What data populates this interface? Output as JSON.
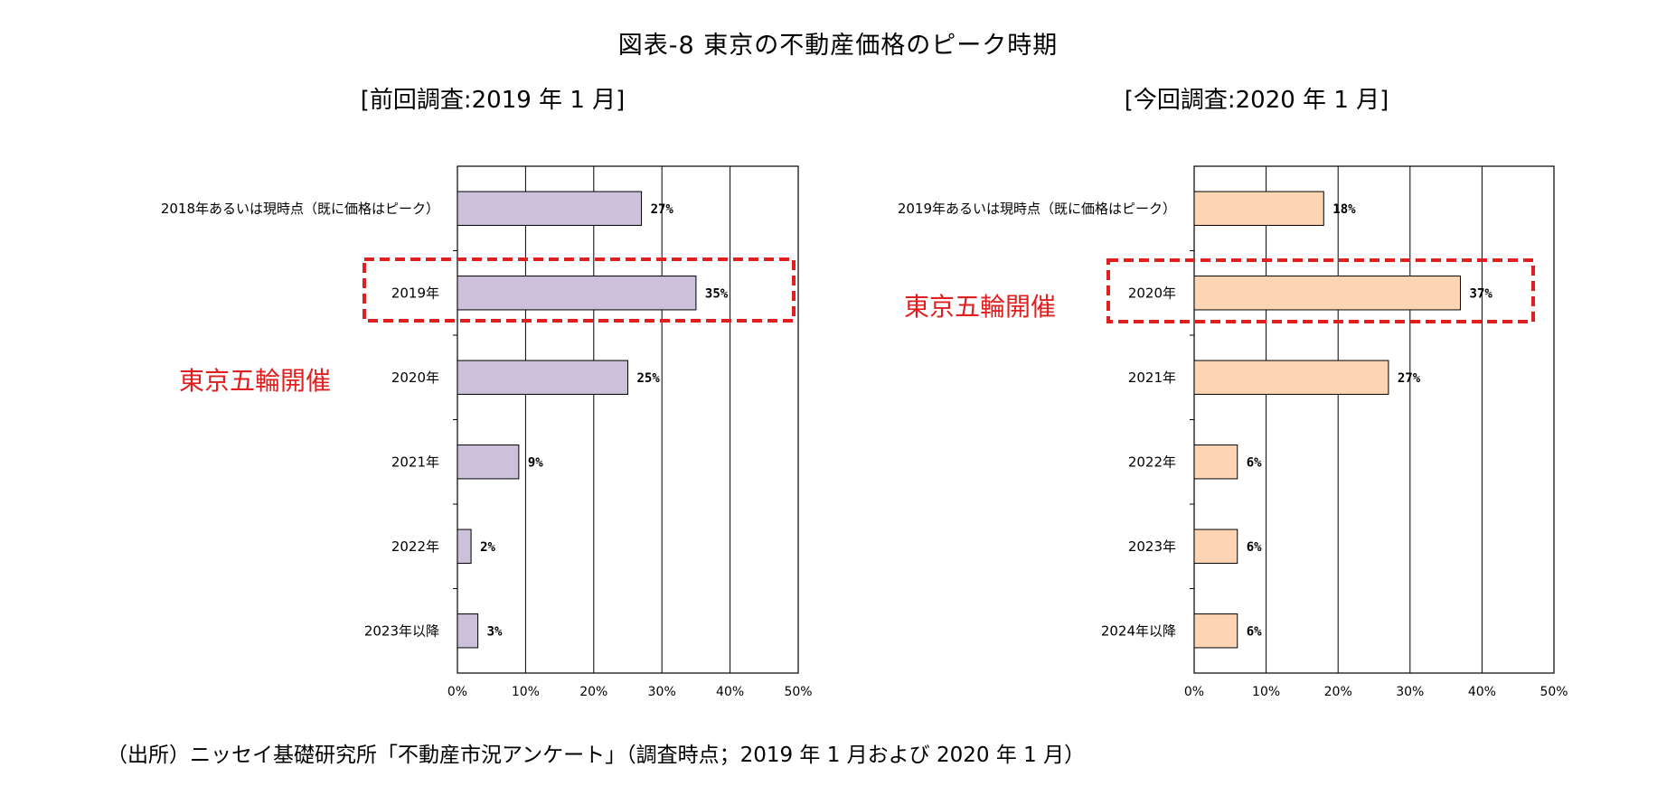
{
  "title": "図表-8  東京の不動産価格のピーク時期",
  "footer": "（出所）ニッセイ基礎研究所「不動産市況アンケート」（調査時点；2019 年 1 月および 2020 年 1 月）",
  "colors": {
    "left_bar": "#ccc0da",
    "right_bar": "#fcd5b4",
    "highlight": "#e02020"
  },
  "chart_data": [
    {
      "type": "bar",
      "orientation": "horizontal",
      "title": "[前回調査:2019 年 1 月]",
      "categories": [
        "2018年あるいは現時点（既に価格はピーク）",
        "2019年",
        "2020年",
        "2021年",
        "2022年",
        "2023年以降"
      ],
      "values": [
        27,
        35,
        25,
        9,
        2,
        3
      ],
      "value_labels": [
        "27%",
        "35%",
        "25%",
        "9%",
        "2%",
        "3%"
      ],
      "xlim": [
        0,
        50
      ],
      "xticks": [
        "0%",
        "10%",
        "20%",
        "30%",
        "40%",
        "50%"
      ],
      "grid": "vertical",
      "highlighted_category": "2019年",
      "annotation": "東京五輪開催"
    },
    {
      "type": "bar",
      "orientation": "horizontal",
      "title": "[今回調査:2020 年 1 月]",
      "categories": [
        "2019年あるいは現時点（既に価格はピーク）",
        "2020年",
        "2021年",
        "2022年",
        "2023年",
        "2024年以降"
      ],
      "values": [
        18,
        37,
        27,
        6,
        6,
        6
      ],
      "value_labels": [
        "18%",
        "37%",
        "27%",
        "6%",
        "6%",
        "6%"
      ],
      "xlim": [
        0,
        50
      ],
      "xticks": [
        "0%",
        "10%",
        "20%",
        "30%",
        "40%",
        "50%"
      ],
      "grid": "vertical",
      "highlighted_category": "2020年",
      "annotation": "東京五輪開催"
    }
  ]
}
